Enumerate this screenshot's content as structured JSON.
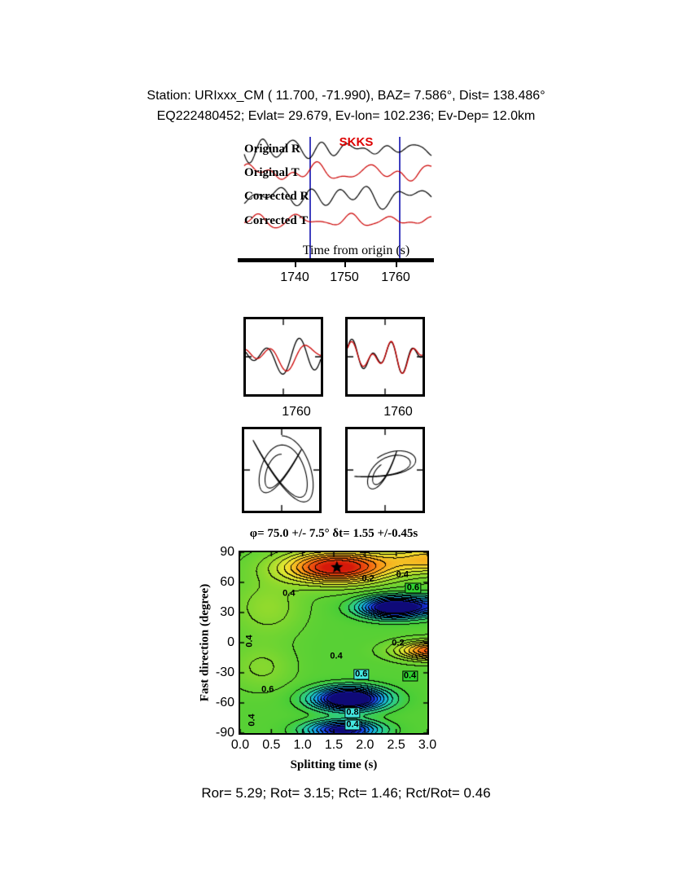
{
  "header": {
    "line1": "Station: URIxxx_CM (  11.700,  -71.990), BAZ=   7.586°, Dist=  138.486°",
    "line2": "EQ222480452; Evlat=  29.679, Ev-lon= 102.236; Ev-Dep= 12.0km"
  },
  "footer": {
    "text": "Ror= 5.29; Rot= 3.15; Rct= 1.46; Rct/Rot= 0.46"
  },
  "chart_data": [
    {
      "name": "seismogram-traces",
      "type": "line",
      "phase_label": "SKKS",
      "xlabel": "Time from origin (s)",
      "xticks": [
        "1740",
        "1750",
        "1760"
      ],
      "xtick_times": [
        1740,
        1750,
        1760
      ],
      "t_range": [
        1729,
        1767.5
      ],
      "window_s": [
        1743,
        1760.5
      ],
      "window_color": "#3f3fbf",
      "series": [
        {
          "label": "Original R",
          "color": "#000000",
          "seed": 11,
          "amp": 12
        },
        {
          "label": "Original T",
          "color": "#cc0000",
          "seed": 23,
          "amp": 10
        },
        {
          "label": "Corrected R",
          "color": "#000000",
          "seed": 37,
          "amp": 12
        },
        {
          "label": "Corrected T",
          "color": "#cc0000",
          "seed": 52,
          "amp": 8
        }
      ]
    },
    {
      "name": "windowed-waveform-pairs",
      "type": "line",
      "colors": {
        "radial": "#000000",
        "transverse": "#cc0000"
      },
      "boxes": [
        {
          "tick_label": "1760",
          "black_seed": 201,
          "red_seed": 202,
          "match": 0.3
        },
        {
          "tick_label": "1760",
          "black_seed": 203,
          "red_seed": 204,
          "match": 0.88
        }
      ]
    },
    {
      "name": "particle-motion",
      "type": "line",
      "boxes": [
        {
          "style": "looped"
        },
        {
          "style": "linearized"
        }
      ]
    },
    {
      "name": "splitting-misfit-map",
      "type": "heatmap",
      "title": "φ= 75.0 +/- 7.5° δt= 1.55 +/-0.45s",
      "xlabel": "Splitting time (s)",
      "ylabel": "Fast direction (degree)",
      "xlim": [
        0,
        3
      ],
      "ylim": [
        -90,
        90
      ],
      "xticks": [
        "0.0",
        "0.5",
        "1.0",
        "1.5",
        "2.0",
        "2.5",
        "3.0"
      ],
      "yticks": [
        "90",
        "60",
        "30",
        "0",
        "-30",
        "-60",
        "-90"
      ],
      "best_fit": {
        "phi_deg": 75.0,
        "phi_err_deg": 7.5,
        "dt_s": 1.55,
        "dt_err_s": 0.45
      },
      "star": {
        "x": 1.55,
        "y": 75
      },
      "contour_step": 0.05,
      "base": 0.48,
      "blobs": [
        {
          "a": 0.55,
          "x": 1.55,
          "y": 75,
          "sx": 0.85,
          "sy": 16
        },
        {
          "a": 0.3,
          "x": 3.15,
          "y": 83,
          "sx": 0.8,
          "sy": 14
        },
        {
          "a": -0.6,
          "x": 2.45,
          "y": 35,
          "sx": 0.5,
          "sy": 10
        },
        {
          "a": -0.25,
          "x": 3.2,
          "y": 37,
          "sx": 0.5,
          "sy": 10
        },
        {
          "a": 0.45,
          "x": 3.1,
          "y": -8,
          "sx": 0.55,
          "sy": 9
        },
        {
          "a": -0.65,
          "x": 1.75,
          "y": -56,
          "sx": 0.55,
          "sy": 11
        },
        {
          "a": -0.5,
          "x": 1.65,
          "y": -87,
          "sx": 0.55,
          "sy": 9
        },
        {
          "a": 0.1,
          "x": 0.45,
          "y": 35,
          "sx": 0.55,
          "sy": 28
        },
        {
          "a": 0.08,
          "x": 0.35,
          "y": -25,
          "sx": 0.5,
          "sy": 22
        }
      ],
      "annotations": [
        {
          "text": "0.2",
          "x": 2.05,
          "y": 63,
          "bg": "none",
          "rot": 0
        },
        {
          "text": "0.4",
          "x": 2.6,
          "y": 67,
          "bg": "none",
          "rot": 0
        },
        {
          "text": "0.6",
          "x": 2.77,
          "y": 54,
          "bg": "green",
          "rot": 0
        },
        {
          "text": "0.4",
          "x": 0.78,
          "y": 49,
          "bg": "none",
          "rot": 0
        },
        {
          "text": "0.4",
          "x": 0.16,
          "y": 2,
          "bg": "none",
          "rot": -90
        },
        {
          "text": "0.2",
          "x": 2.53,
          "y": -1,
          "bg": "none",
          "rot": 0
        },
        {
          "text": "0.4",
          "x": 1.54,
          "y": -14,
          "bg": "none",
          "rot": 0
        },
        {
          "text": "0.6",
          "x": 1.94,
          "y": -32,
          "bg": "cyan",
          "rot": 0
        },
        {
          "text": "0.4",
          "x": 2.72,
          "y": -33,
          "bg": "green",
          "rot": 0
        },
        {
          "text": "0.6",
          "x": 0.44,
          "y": -47,
          "bg": "none",
          "rot": 0
        },
        {
          "text": "0.8",
          "x": 1.8,
          "y": -70,
          "bg": "cyan",
          "rot": 0
        },
        {
          "text": "0.4",
          "x": 1.8,
          "y": -82,
          "bg": "cyan",
          "rot": 0
        },
        {
          "text": "0.4",
          "x": 0.2,
          "y": -77,
          "bg": "none",
          "rot": -90
        }
      ],
      "colormap": [
        [
          0.0,
          15,
          10,
          120
        ],
        [
          0.1,
          25,
          55,
          225
        ],
        [
          0.22,
          20,
          160,
          235
        ],
        [
          0.33,
          35,
          205,
          170
        ],
        [
          0.45,
          70,
          205,
          55
        ],
        [
          0.58,
          145,
          218,
          45
        ],
        [
          0.7,
          238,
          232,
          50
        ],
        [
          0.82,
          250,
          158,
          25
        ],
        [
          0.91,
          240,
          85,
          15
        ],
        [
          1.0,
          213,
          25,
          10
        ]
      ]
    }
  ]
}
